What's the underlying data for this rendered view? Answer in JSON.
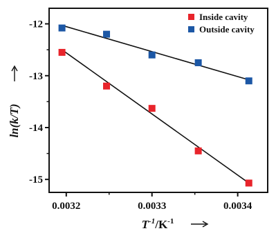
{
  "chart_data": {
    "type": "scatter",
    "xlabel": {
      "main": "T",
      "sup": "-1",
      "unit": "/K",
      "unit_sup": "-1"
    },
    "ylabel": "ln(k/T)",
    "xlim": [
      0.00318,
      0.003435
    ],
    "ylim": [
      -15.25,
      -11.7
    ],
    "xticks": [
      0.0032,
      0.0033,
      0.0034
    ],
    "xtick_labels": [
      "0.0032",
      "0.0033",
      "0.0034"
    ],
    "yticks": [
      -12,
      -13,
      -14,
      -15
    ],
    "ytick_labels": [
      "-12",
      "-13",
      "-14",
      "-15"
    ],
    "legend_position": "top-right",
    "grid": false,
    "series": [
      {
        "name": "Inside cavity",
        "color": "#e8242b",
        "x": [
          0.003195,
          0.003247,
          0.0033,
          0.003354,
          0.003413
        ],
        "y": [
          -12.55,
          -13.2,
          -13.63,
          -14.45,
          -15.07
        ],
        "fit": {
          "x": [
            0.003195,
            0.003413
          ],
          "y": [
            -12.5,
            -15.07
          ]
        }
      },
      {
        "name": "Outside cavity",
        "color": "#1c57a5",
        "x": [
          0.003195,
          0.003247,
          0.0033,
          0.003354,
          0.003413
        ],
        "y": [
          -12.08,
          -12.2,
          -12.6,
          -12.75,
          -13.1
        ],
        "fit": {
          "x": [
            0.003195,
            0.003413
          ],
          "y": [
            -12.03,
            -13.08
          ]
        }
      }
    ]
  }
}
